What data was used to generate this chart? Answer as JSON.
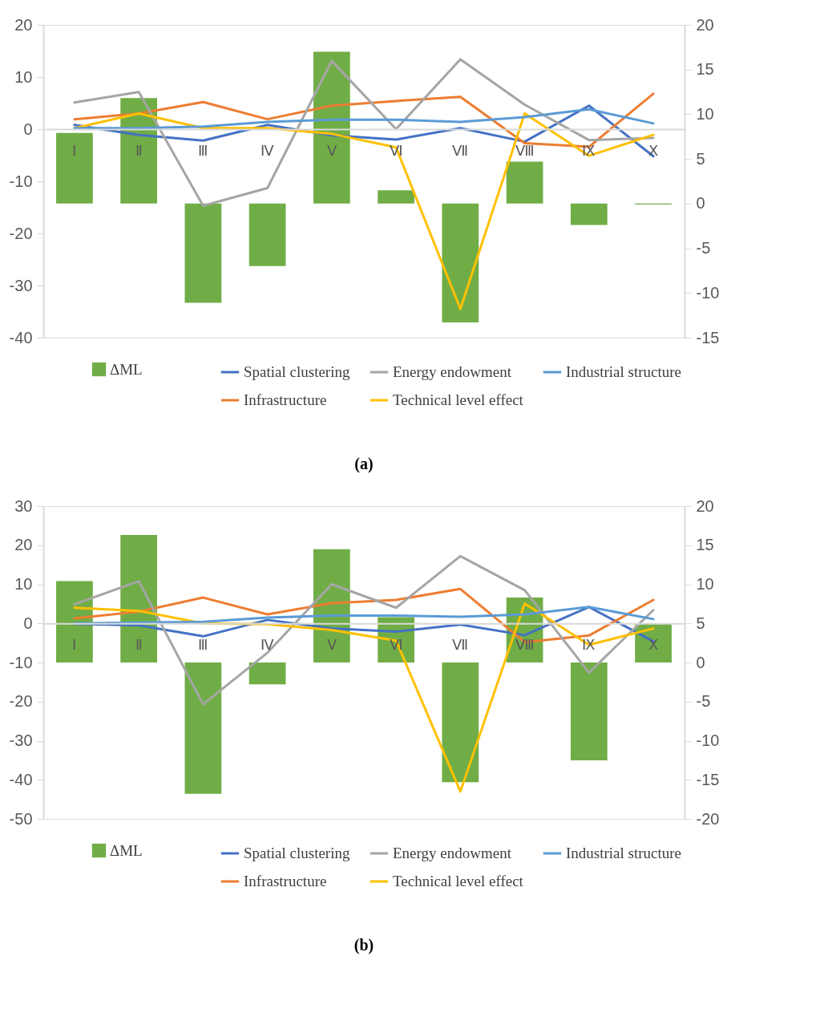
{
  "chart_data": [
    {
      "type": "bar",
      "title": "(a)",
      "categories": [
        "Ⅰ",
        "Ⅱ",
        "Ⅲ",
        "Ⅳ",
        "Ⅴ",
        "Ⅵ",
        "Ⅶ",
        "Ⅷ",
        "Ⅸ",
        "Ⅹ"
      ],
      "ylim": [
        -40,
        20
      ],
      "yticks": [
        -40,
        -30,
        -20,
        -10,
        0,
        10,
        20
      ],
      "y2lim": [
        -15,
        20
      ],
      "y2ticks": [
        -15,
        -10,
        -5,
        0,
        5,
        10,
        15,
        20
      ],
      "legend": "bottom",
      "grid": false,
      "series": [
        {
          "name": "ΔML",
          "axis": "y2",
          "color": "#70ad47",
          "values": [
            7.9,
            11.8,
            -11.1,
            -7.0,
            17.0,
            1.5,
            -13.3,
            4.7,
            -2.4,
            -0.1
          ]
        },
        {
          "name": "Spatial clustering",
          "type": "line",
          "color": "#4472c4",
          "values": [
            0.8,
            -1.1,
            -2.2,
            0.8,
            -1.2,
            -2.0,
            0.2,
            -2.4,
            4.5,
            -5.2
          ]
        },
        {
          "name": "Infrastructure",
          "type": "line",
          "color": "#ed7d31",
          "values": [
            1.9,
            3.0,
            5.2,
            1.9,
            4.5,
            5.4,
            6.2,
            -2.7,
            -3.4,
            6.8
          ]
        },
        {
          "name": "Energy endowment",
          "type": "line",
          "color": "#a5a5a5",
          "values": [
            5.1,
            7.1,
            -14.7,
            -11.3,
            13.1,
            0.0,
            13.4,
            4.7,
            -2.1,
            -1.7
          ]
        },
        {
          "name": "Technical level effect",
          "type": "line",
          "color": "#ffc000",
          "values": [
            0.2,
            3.0,
            0.2,
            0.2,
            -0.9,
            -3.5,
            -34.5,
            3.0,
            -5.1,
            -1.1
          ]
        },
        {
          "name": "Industrial structure",
          "type": "line",
          "color": "#5b9bd5",
          "values": [
            0.2,
            0.2,
            0.5,
            1.4,
            1.8,
            1.8,
            1.4,
            2.3,
            3.8,
            1.1
          ]
        }
      ]
    },
    {
      "type": "bar",
      "title": "(b)",
      "categories": [
        "Ⅰ",
        "Ⅱ",
        "Ⅲ",
        "Ⅳ",
        "Ⅴ",
        "Ⅵ",
        "Ⅶ",
        "Ⅷ",
        "Ⅸ",
        "Ⅹ"
      ],
      "ylim": [
        -50,
        30
      ],
      "yticks": [
        -50,
        -40,
        -30,
        -20,
        -10,
        0,
        10,
        20,
        30
      ],
      "y2lim": [
        -20,
        20
      ],
      "y2ticks": [
        -20,
        -15,
        -10,
        -5,
        0,
        5,
        10,
        15,
        20
      ],
      "legend": "bottom",
      "grid": false,
      "series": [
        {
          "name": "ΔML",
          "axis": "y2",
          "color": "#70ad47",
          "values": [
            10.4,
            16.3,
            -16.8,
            -2.8,
            14.5,
            5.8,
            -15.3,
            8.3,
            -12.5,
            5.0
          ]
        },
        {
          "name": "Spatial clustering",
          "type": "line",
          "color": "#4472c4",
          "values": [
            -0.1,
            -0.5,
            -3.3,
            0.9,
            -1.3,
            -2.1,
            -0.3,
            -3.0,
            4.2,
            -4.6
          ]
        },
        {
          "name": "Infrastructure",
          "type": "line",
          "color": "#ed7d31",
          "values": [
            1.3,
            3.0,
            6.6,
            2.3,
            5.2,
            6.0,
            8.8,
            -4.8,
            -3.1,
            6.0
          ]
        },
        {
          "name": "Energy endowment",
          "type": "line",
          "color": "#a5a5a5",
          "values": [
            4.9,
            10.8,
            -20.7,
            -7.5,
            10.0,
            4.0,
            17.2,
            8.5,
            -12.6,
            3.4
          ]
        },
        {
          "name": "Technical level effect",
          "type": "line",
          "color": "#ffc000",
          "values": [
            4.0,
            3.2,
            0.0,
            -0.2,
            -1.7,
            -4.4,
            -43.0,
            5.1,
            -5.5,
            -1.3
          ]
        },
        {
          "name": "Industrial structure",
          "type": "line",
          "color": "#5b9bd5",
          "values": [
            0.0,
            0.2,
            0.4,
            1.5,
            2.0,
            2.0,
            1.7,
            2.3,
            4.2,
            1.1
          ]
        }
      ]
    }
  ]
}
